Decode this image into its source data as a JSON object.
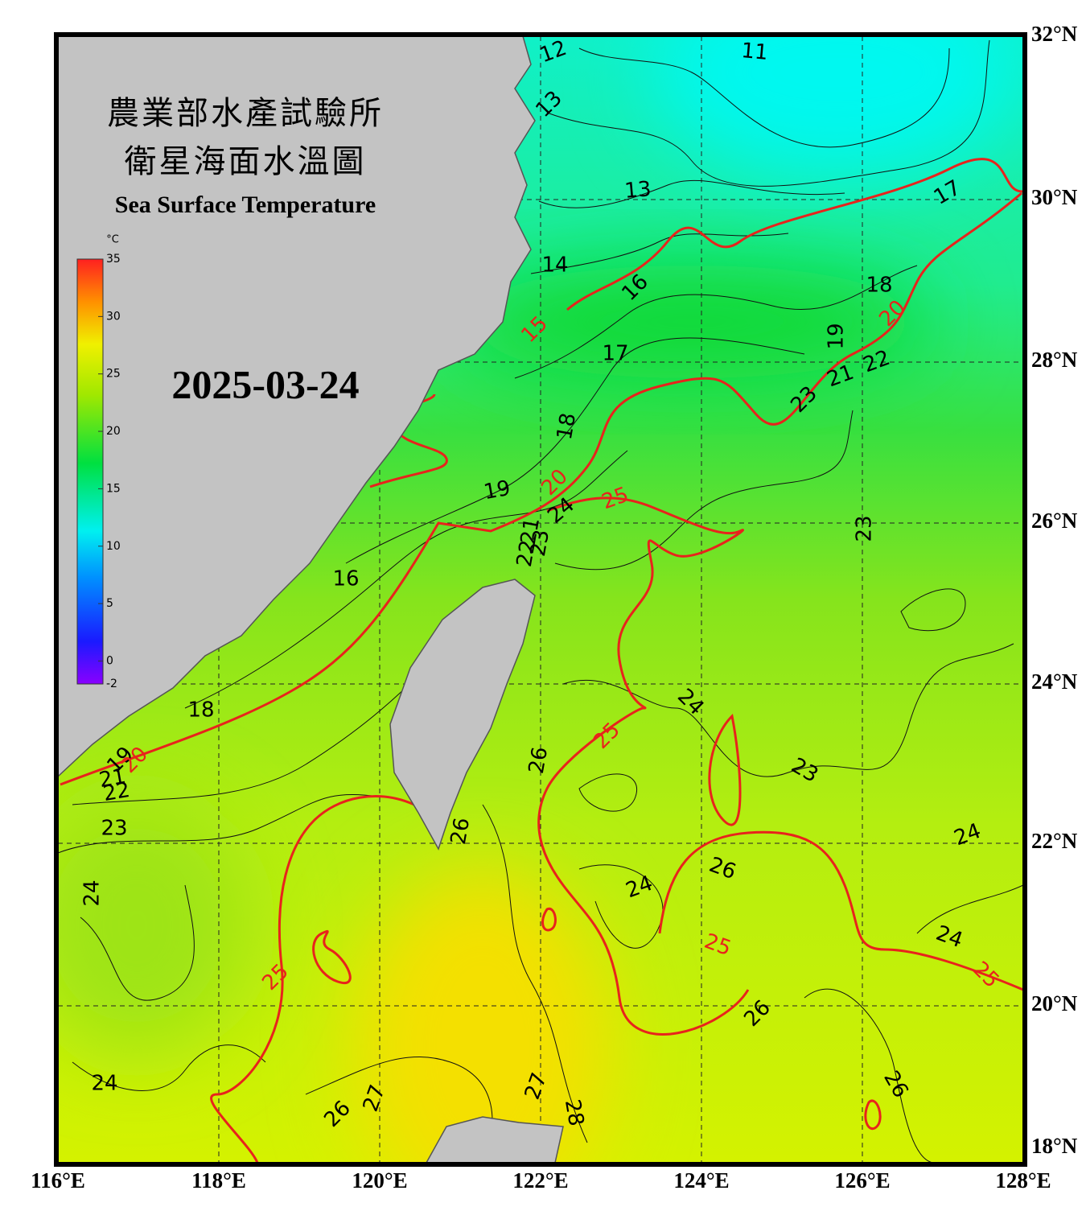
{
  "title_zh_1": "農業部水產試驗所",
  "title_zh_2": "衛星海面水溫圖",
  "title_en": "Sea Surface Temperature",
  "date": "2025-03-24",
  "colorbar": {
    "unit": "°C",
    "range": [
      -2,
      35
    ],
    "ticks": [
      35,
      30,
      25,
      20,
      15,
      10,
      5,
      0,
      -2
    ]
  },
  "lon_labels": [
    "116°E",
    "118°E",
    "120°E",
    "122°E",
    "124°E",
    "126°E",
    "128°E"
  ],
  "lat_labels": [
    "32°N",
    "30°N",
    "28°N",
    "26°N",
    "24°N",
    "22°N",
    "20°N",
    "18°N"
  ],
  "contour_labels": [
    {
      "text": "12",
      "color": "#000000"
    },
    {
      "text": "11",
      "color": "#000000"
    },
    {
      "text": "13",
      "color": "#000000"
    },
    {
      "text": "13",
      "color": "#000000"
    },
    {
      "text": "17",
      "color": "#000000"
    },
    {
      "text": "14",
      "color": "#000000"
    },
    {
      "text": "16",
      "color": "#000000"
    },
    {
      "text": "18",
      "color": "#000000"
    },
    {
      "text": "15",
      "color": "#e8231c"
    },
    {
      "text": "20",
      "color": "#e8231c"
    },
    {
      "text": "19",
      "color": "#000000"
    },
    {
      "text": "17",
      "color": "#000000"
    },
    {
      "text": "22",
      "color": "#000000"
    },
    {
      "text": "21",
      "color": "#000000"
    },
    {
      "text": "23",
      "color": "#000000"
    },
    {
      "text": "18",
      "color": "#000000"
    },
    {
      "text": "19",
      "color": "#000000"
    },
    {
      "text": "20",
      "color": "#e8231c"
    },
    {
      "text": "25",
      "color": "#e8231c"
    },
    {
      "text": "24",
      "color": "#000000"
    },
    {
      "text": "21",
      "color": "#000000"
    },
    {
      "text": "22",
      "color": "#000000"
    },
    {
      "text": "23",
      "color": "#000000"
    },
    {
      "text": "23",
      "color": "#000000"
    },
    {
      "text": "16",
      "color": "#000000"
    },
    {
      "text": "18",
      "color": "#000000"
    },
    {
      "text": "24",
      "color": "#000000"
    },
    {
      "text": "25",
      "color": "#e8231c"
    },
    {
      "text": "19",
      "color": "#000000"
    },
    {
      "text": "20",
      "color": "#e8231c"
    },
    {
      "text": "26",
      "color": "#000000"
    },
    {
      "text": "23",
      "color": "#000000"
    },
    {
      "text": "21",
      "color": "#000000"
    },
    {
      "text": "22",
      "color": "#000000"
    },
    {
      "text": "23",
      "color": "#000000"
    },
    {
      "text": "26",
      "color": "#000000"
    },
    {
      "text": "24",
      "color": "#000000"
    },
    {
      "text": "26",
      "color": "#000000"
    },
    {
      "text": "24",
      "color": "#000000"
    },
    {
      "text": "24",
      "color": "#000000"
    },
    {
      "text": "25",
      "color": "#e8231c"
    },
    {
      "text": "24",
      "color": "#000000"
    },
    {
      "text": "25",
      "color": "#e8231c"
    },
    {
      "text": "25",
      "color": "#e8231c"
    },
    {
      "text": "26",
      "color": "#000000"
    },
    {
      "text": "24",
      "color": "#000000"
    },
    {
      "text": "26",
      "color": "#000000"
    },
    {
      "text": "27",
      "color": "#000000"
    },
    {
      "text": "26",
      "color": "#000000"
    },
    {
      "text": "27",
      "color": "#000000"
    },
    {
      "text": "28",
      "color": "#000000"
    }
  ]
}
